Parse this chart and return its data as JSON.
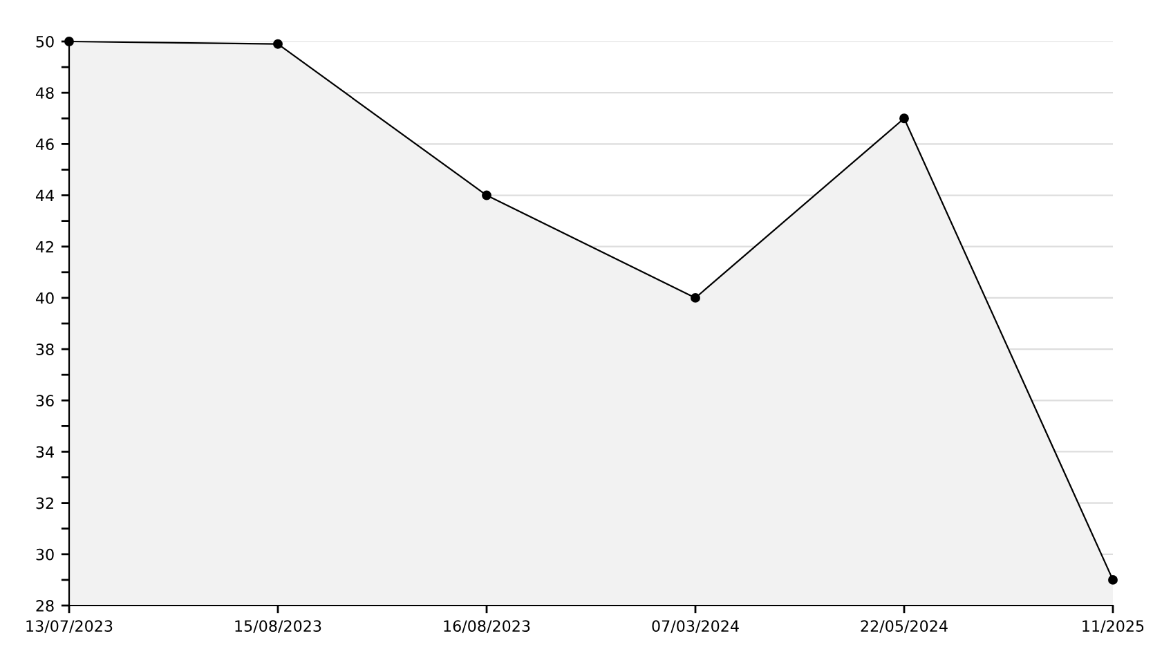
{
  "chart_data": {
    "type": "area",
    "categories": [
      "13/07/2023",
      "15/08/2023",
      "16/08/2023",
      "07/03/2024",
      "22/05/2024",
      "11/2025"
    ],
    "series": [
      {
        "color": "#000000",
        "values": [
          50,
          49.9,
          44,
          40,
          47,
          29
        ]
      }
    ],
    "ylim": [
      28,
      50
    ],
    "yticks": [
      28,
      {
        "value": 29,
        "label": null
      },
      30,
      {
        "value": 31,
        "label": null
      },
      32,
      {
        "value": 33,
        "label": null
      },
      34,
      {
        "value": 35,
        "label": null
      },
      36,
      {
        "value": 37,
        "label": null
      },
      38,
      {
        "value": 39,
        "label": null
      },
      40,
      {
        "value": 41,
        "label": null
      },
      42,
      {
        "value": 43,
        "label": null
      },
      44,
      {
        "value": 45,
        "label": null
      },
      46,
      {
        "value": 47,
        "label": null
      },
      48,
      {
        "value": 49,
        "label": null
      },
      50
    ],
    "grid": "y",
    "marker": "circle",
    "line_style": "solid"
  }
}
